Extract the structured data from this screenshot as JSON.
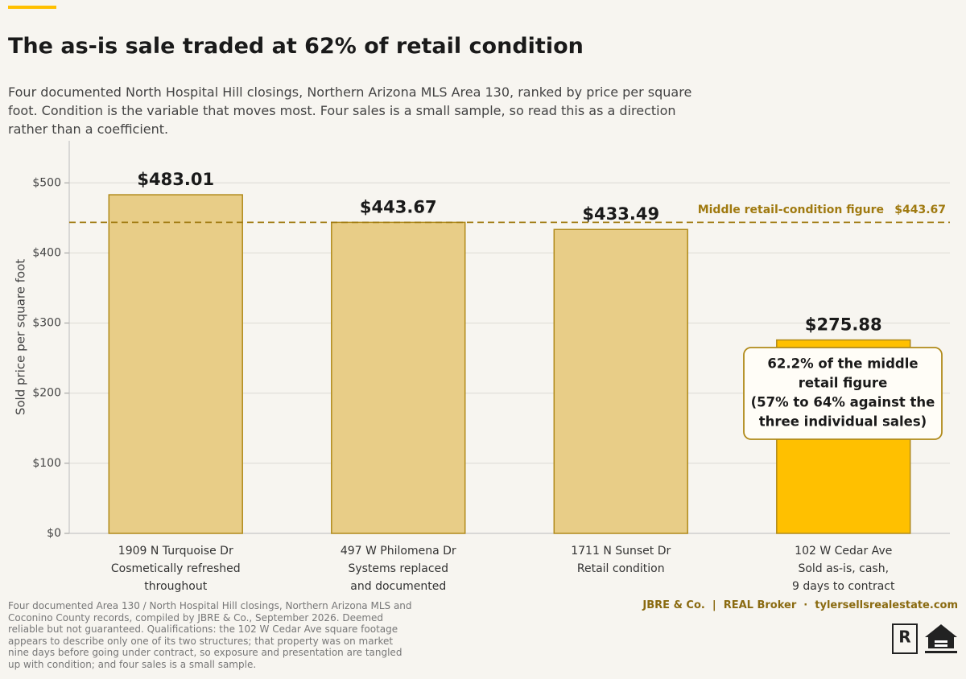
{
  "chart_data": {
    "type": "bar",
    "title": "The as-is sale traded at 62% of retail condition",
    "subtitle": "Four documented North Hospital Hill closings, Northern Arizona MLS Area 130, ranked by price per square foot. Condition is the variable that moves most. Four sales is a small sample, so read this as a direction rather than a coefficient.",
    "y_label": "Sold price per square foot",
    "categories": [
      [
        "1909 N Turquoise Dr",
        "Cosmetically refreshed",
        "throughout"
      ],
      [
        "497 W Philomena Dr",
        "Systems replaced",
        "and documented"
      ],
      [
        "1711 N Sunset Dr",
        "Retail condition"
      ],
      [
        "102 W Cedar Ave",
        "Sold as-is, cash,",
        "9 days to contract"
      ]
    ],
    "values": [
      483.01,
      443.67,
      433.49,
      275.88
    ],
    "value_labels": [
      "$483.01",
      "$443.67",
      "$433.49",
      "$275.88"
    ],
    "colors": [
      "#e8cd87",
      "#e8cd87",
      "#e8cd87",
      "#ffc000"
    ],
    "edge_color": "#b08a1a",
    "ylim": [
      0,
      560
    ],
    "yticks": [
      {
        "value": 0,
        "label": "$0"
      },
      {
        "value": 100,
        "label": "$100"
      },
      {
        "value": 200,
        "label": "$200"
      },
      {
        "value": 300,
        "label": "$300"
      },
      {
        "value": 400,
        "label": "$400"
      },
      {
        "value": 500,
        "label": "$500"
      }
    ],
    "grid": true,
    "reference_line": {
      "value": 443.67,
      "label": "Middle retail-condition figure",
      "value_label": "$443.67",
      "color": "#a07a10"
    },
    "annotation": {
      "lines": [
        "62.2% of the middle",
        "retail figure",
        "(57% to 64% against the",
        "three individual sales)"
      ]
    },
    "footnote": "Four documented Area 130 / North Hospital Hill closings, Northern Arizona MLS and Coconino County records, compiled by JBRE & Co., September 2026. Deemed reliable but not guaranteed. Qualifications: the 102 W Cedar Ave square footage appears to describe only one of its two structures; that property was on market nine days before going under contract, so exposure and presentation are tangled up with condition; and four sales is a small sample.",
    "credit": "JBRE & Co.  |  REAL Broker  ·  tylersellsrealestate.com"
  }
}
